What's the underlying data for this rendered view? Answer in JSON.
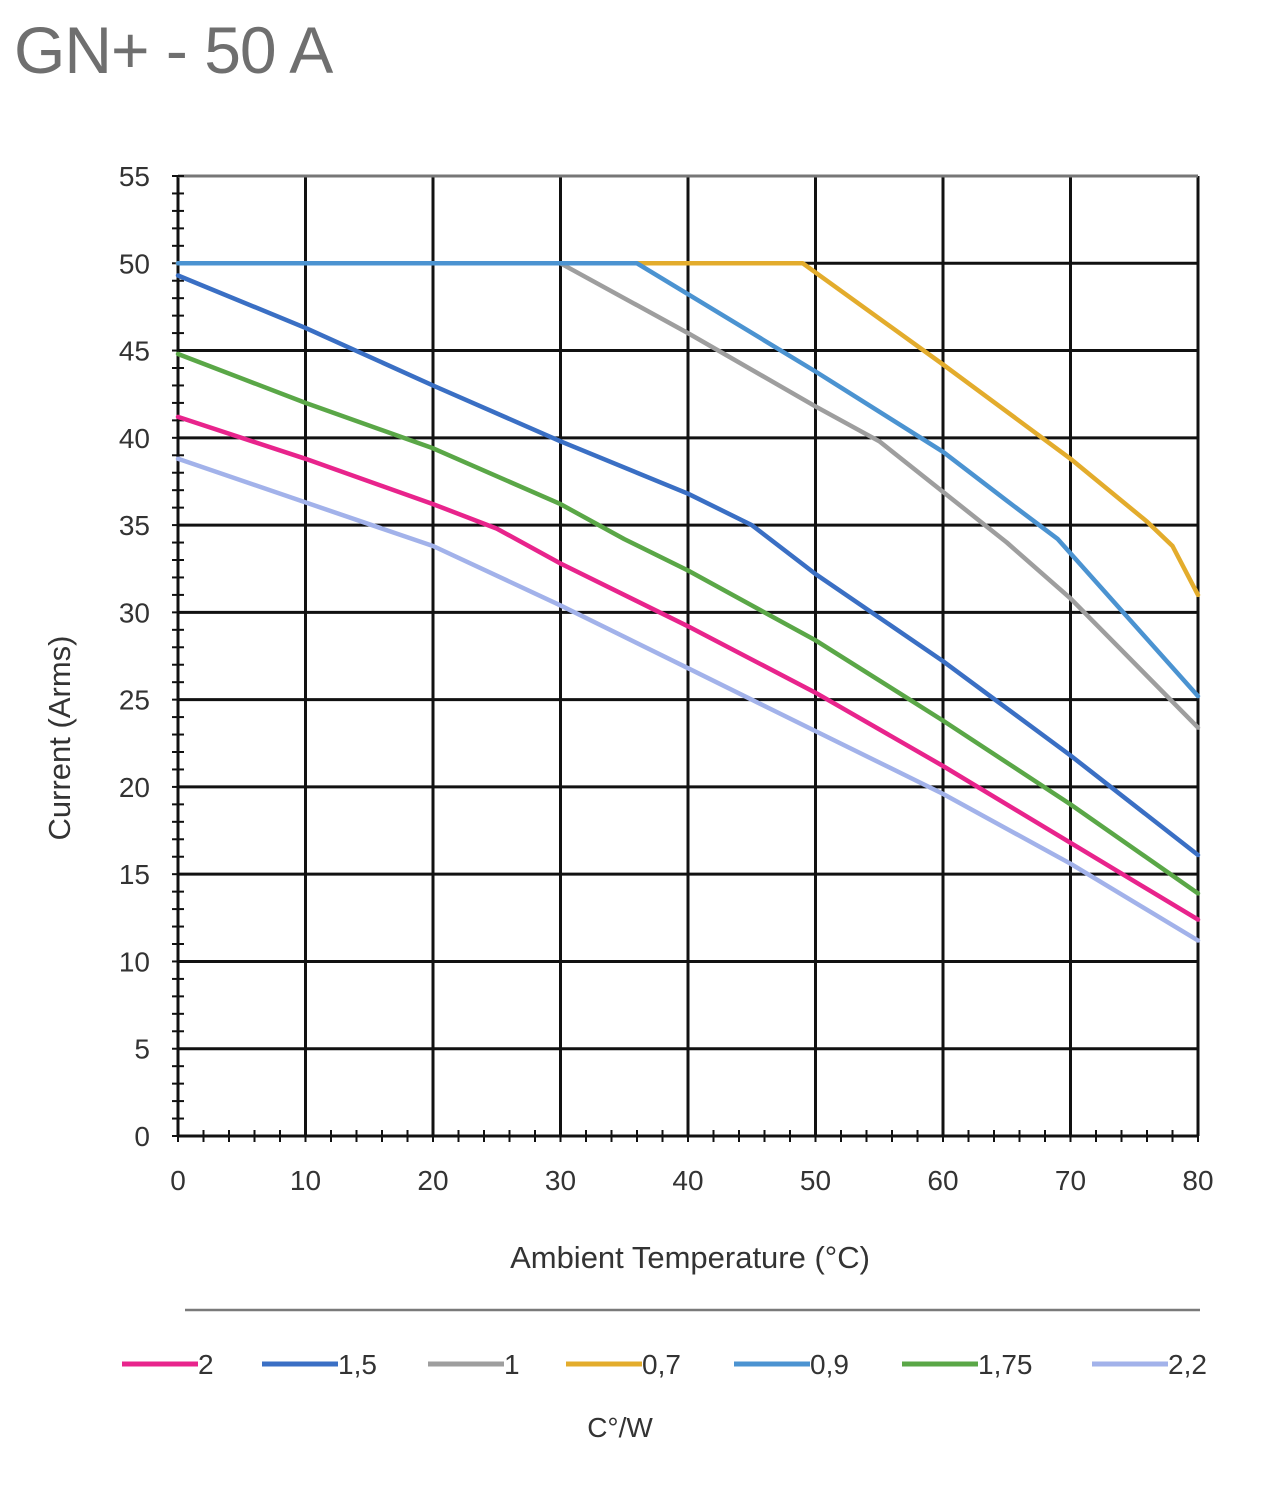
{
  "title": "GN+ - 50 A",
  "chart_data": {
    "type": "line",
    "xlabel": "Ambient Temperature (°C)",
    "ylabel": "Current (Arms)",
    "xlim": [
      0,
      80
    ],
    "ylim": [
      0,
      55
    ],
    "xticks": [
      "0",
      "10",
      "20",
      "30",
      "40",
      "50",
      "60",
      "70",
      "80"
    ],
    "yticks": [
      "0",
      "5",
      "10",
      "15",
      "20",
      "25",
      "30",
      "35",
      "40",
      "45",
      "50",
      "55"
    ],
    "grid": true,
    "legend_position": "bottom",
    "legend_title": "C°/W",
    "series": [
      {
        "name": "2",
        "color": "#e8248c",
        "points": [
          [
            0,
            41.2
          ],
          [
            10,
            38.8
          ],
          [
            20,
            36.2
          ],
          [
            25,
            34.8
          ],
          [
            30,
            32.8
          ],
          [
            40,
            29.2
          ],
          [
            50,
            25.4
          ],
          [
            60,
            21.2
          ],
          [
            70,
            16.8
          ],
          [
            80,
            12.4
          ]
        ]
      },
      {
        "name": "1,5",
        "color": "#3a6fc4",
        "points": [
          [
            0,
            49.3
          ],
          [
            10,
            46.3
          ],
          [
            20,
            43.0
          ],
          [
            30,
            39.8
          ],
          [
            40,
            36.8
          ],
          [
            45,
            35.0
          ],
          [
            50,
            32.2
          ],
          [
            60,
            27.2
          ],
          [
            70,
            21.8
          ],
          [
            80,
            16.1
          ]
        ]
      },
      {
        "name": "1",
        "color": "#9e9e9e",
        "points": [
          [
            0,
            50
          ],
          [
            30,
            50
          ],
          [
            40,
            46.0
          ],
          [
            50,
            41.8
          ],
          [
            55,
            39.8
          ],
          [
            65,
            34.0
          ],
          [
            70,
            30.8
          ],
          [
            80,
            23.4
          ]
        ]
      },
      {
        "name": "0,7",
        "color": "#e3ac2c",
        "points": [
          [
            0,
            50
          ],
          [
            49,
            50
          ],
          [
            60,
            44.2
          ],
          [
            70,
            38.8
          ],
          [
            76,
            35.2
          ],
          [
            78,
            33.8
          ],
          [
            80,
            31.0
          ]
        ]
      },
      {
        "name": "0,9",
        "color": "#4b93d1",
        "points": [
          [
            0,
            50
          ],
          [
            36,
            50
          ],
          [
            50,
            43.8
          ],
          [
            60,
            39.2
          ],
          [
            65,
            36.4
          ],
          [
            69,
            34.2
          ],
          [
            80,
            25.2
          ]
        ]
      },
      {
        "name": "1,75",
        "color": "#5aa747",
        "points": [
          [
            0,
            44.8
          ],
          [
            10,
            42.0
          ],
          [
            20,
            39.4
          ],
          [
            30,
            36.2
          ],
          [
            35,
            34.2
          ],
          [
            40,
            32.4
          ],
          [
            50,
            28.4
          ],
          [
            60,
            23.8
          ],
          [
            70,
            19.0
          ],
          [
            80,
            13.9
          ]
        ]
      },
      {
        "name": "2,2",
        "color": "#a2b2ea",
        "points": [
          [
            0,
            38.8
          ],
          [
            10,
            36.3
          ],
          [
            20,
            33.8
          ],
          [
            30,
            30.4
          ],
          [
            40,
            26.8
          ],
          [
            50,
            23.2
          ],
          [
            60,
            19.6
          ],
          [
            70,
            15.6
          ],
          [
            80,
            11.2
          ]
        ]
      }
    ]
  }
}
